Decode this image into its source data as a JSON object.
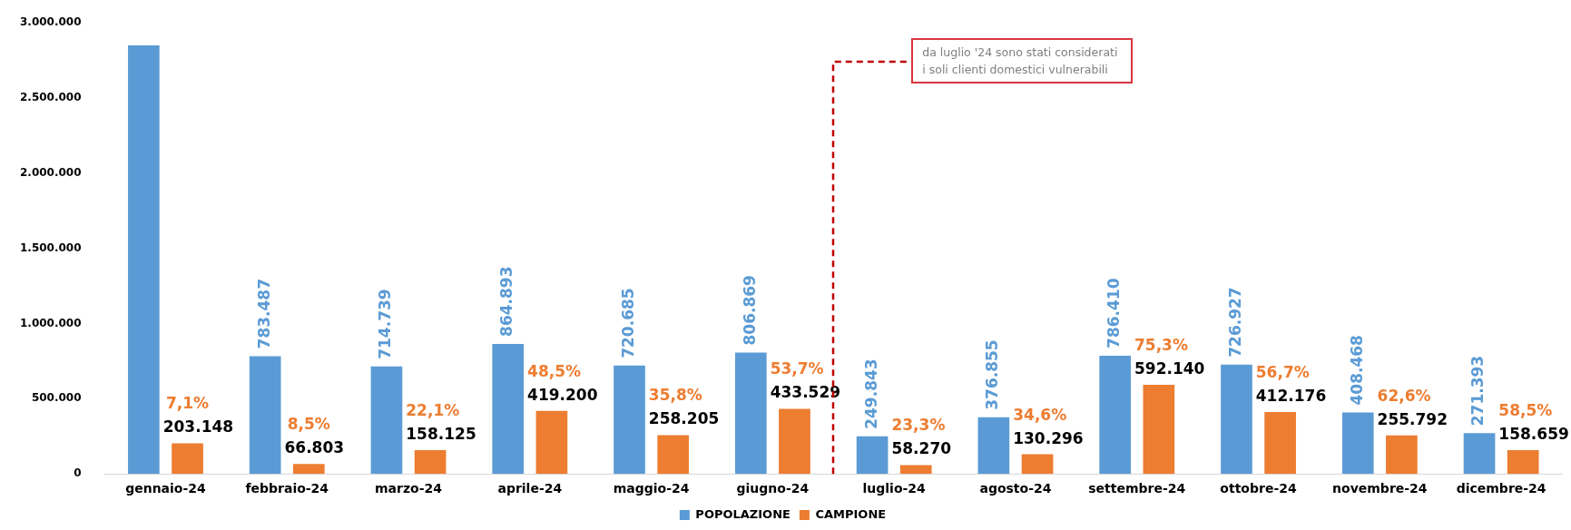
{
  "chart_data": {
    "type": "bar",
    "categories": [
      "gennaio-24",
      "febbraio-24",
      "marzo-24",
      "aprile-24",
      "maggio-24",
      "giugno-24",
      "luglio-24",
      "agosto-24",
      "settembre-24",
      "ottobre-24",
      "novembre-24",
      "dicembre-24"
    ],
    "series": [
      {
        "name": "POPOLAZIONE",
        "color": "#5b9bd5",
        "values": [
          2850000,
          783487,
          714739,
          864893,
          720685,
          806869,
          249843,
          376855,
          786410,
          726927,
          408468,
          271393
        ],
        "value_labels": [
          null,
          "783.487",
          "714.739",
          "864.893",
          "720.685",
          "806.869",
          "249.843",
          "376.855",
          "786.410",
          "726.927",
          "408.468",
          "271.393"
        ]
      },
      {
        "name": "CAMPIONE",
        "color": "#ed7d31",
        "values": [
          203148,
          66803,
          158125,
          419200,
          258205,
          433529,
          58270,
          130296,
          592140,
          412176,
          255792,
          158659
        ],
        "value_labels": [
          "203.148",
          "66.803",
          "158.125",
          "419.200",
          "258.205",
          "433.529",
          "58.270",
          "130.296",
          "592.140",
          "412.176",
          "255.792",
          "158.659"
        ]
      }
    ],
    "ylim": [
      0,
      3000000
    ],
    "yticks": [
      {
        "value": 0,
        "label": "0"
      },
      {
        "value": 500000,
        "label": "500.000"
      },
      {
        "value": 1000000,
        "label": "1.000.000"
      },
      {
        "value": 1500000,
        "label": "1.500.000"
      },
      {
        "value": 2000000,
        "label": "2.000.000"
      },
      {
        "value": 2500000,
        "label": "2.500.000"
      },
      {
        "value": 3000000,
        "label": "3.000.000"
      }
    ],
    "grid": false,
    "legend": "bottom",
    "annotations": [
      "da luglio '24 sono stati considerati i soli clienti domestici vulnerabili",
      "7,1%",
      "8,5%",
      "22,1%",
      "48,5%",
      "35,8%",
      "53,7%",
      "23,3%",
      "34,6%",
      "75,3%",
      "56,7%",
      "62,6%",
      "58,5%"
    ]
  }
}
